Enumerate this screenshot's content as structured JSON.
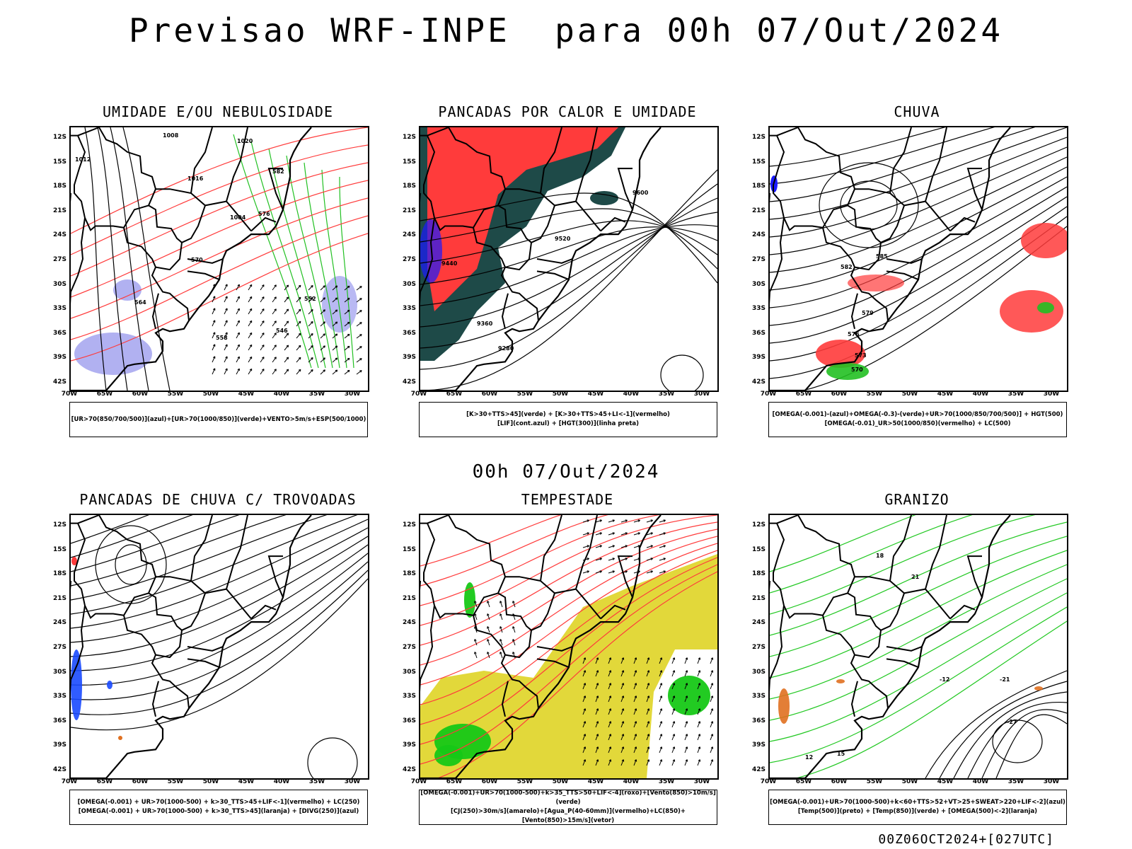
{
  "header": {
    "title": "Previsao WRF-INPE  para 00h 07/Out/2024",
    "mid_date": "00h 07/Out/2024",
    "footer": "00Z06OCT2024+[027UTC]"
  },
  "axes": {
    "lat_labels": [
      "12S",
      "15S",
      "18S",
      "21S",
      "24S",
      "27S",
      "30S",
      "33S",
      "36S",
      "39S",
      "42S"
    ],
    "lon_labels": [
      "70W",
      "65W",
      "60W",
      "55W",
      "50W",
      "45W",
      "40W",
      "35W",
      "30W"
    ]
  },
  "panels": [
    {
      "title": "UMIDADE E/OU NEBULOSIDADE",
      "legend": [
        "[UR>70(850/700/500)](azul)+[UR>70(1000/850)](verde)+VENTO>5m/s+ESP(500/1000)"
      ],
      "colors": {
        "humidity_high": "#a8a8f0",
        "humidity_low": "#22c022",
        "thickness": "#ff3b3b",
        "pressure": "#000000"
      },
      "contour_labels": [
        "1008",
        "1012",
        "1016",
        "1004",
        "1020",
        "582",
        "576",
        "570",
        "564",
        "558",
        "552",
        "546"
      ]
    },
    {
      "title": "PANCADAS POR CALOR E UMIDADE",
      "legend": [
        "[K>30+TTS>45](verde) + [K>30+TTS>45+LI<-1](vermelho)",
        "[LIF](cont.azul) + [HGT(300)](linha preta)"
      ],
      "colors": {
        "instability": "#ff3b3b",
        "moist": "#1e4a48",
        "lif": "#1a1aff",
        "hgt": "#000000"
      },
      "contour_labels": [
        "9600",
        "9520",
        "9440",
        "9360",
        "9280"
      ]
    },
    {
      "title": "CHUVA",
      "legend": [
        "[OMEGA(-0.001)-(azul)+OMEGA(-0.3)-(verde)+UR>70(1000/850/700/500)] + HGT(500)",
        "[OMEGA(-0.01)_UR>50(1000/850)(vermelho) + LC(500)"
      ],
      "colors": {
        "rain": "#ff3b3b",
        "strong": "#22c022",
        "omega": "#1a1aff",
        "streamline": "#000000"
      },
      "contour_labels": [
        "585",
        "582",
        "579",
        "576",
        "573",
        "570"
      ]
    },
    {
      "title": "PANCADAS DE CHUVA C/ TROVOADAS",
      "legend": [
        "[OMEGA(-0.001) + UR>70(1000-500) + k>30_TTS>45+LIF<-1](vermelho) + LC(250)",
        "[OMEGA(-0.001) + UR>70(1000-500) + k>30_TTS>45](laranja) + [DIVG(250)](azul)"
      ],
      "colors": {
        "storm": "#ff3b3b",
        "divg": "#1a4aff",
        "orange": "#e07020",
        "streamline": "#000000"
      },
      "contour_labels": []
    },
    {
      "title": "TEMPESTADE",
      "legend": [
        "[OMEGA(-0.001)+UR>70(1000-500)+k>35_TTS>50+LIF<-4](roxo)+[Vento(850)>10m/s](verde)",
        "[CJ(250)>30m/s](amarelo)+[Agua_P(40-60mm)](vermelho)+LC(850)+[Vento(850)>15m/s](vetor)"
      ],
      "colors": {
        "jet": "#e2d83a",
        "wind": "#16c816",
        "water": "#ff3b3b",
        "vector": "#000000"
      },
      "contour_labels": []
    },
    {
      "title": "GRANIZO",
      "legend": [
        "[OMEGA(-0.001)+UR>70(1000-500)+k<60+TTS>52+VT>25+SWEAT>220+LIF<-2](azul)",
        "[Temp(500)](preto) + [Temp(850)](verde) + [OMEGA(500)<-2](laranja)"
      ],
      "colors": {
        "temp850": "#22c822",
        "temp500": "#000000",
        "omega": "#e07020"
      },
      "contour_labels": [
        "-12",
        "-21",
        "-27",
        "12",
        "15",
        "18",
        "21"
      ]
    }
  ]
}
